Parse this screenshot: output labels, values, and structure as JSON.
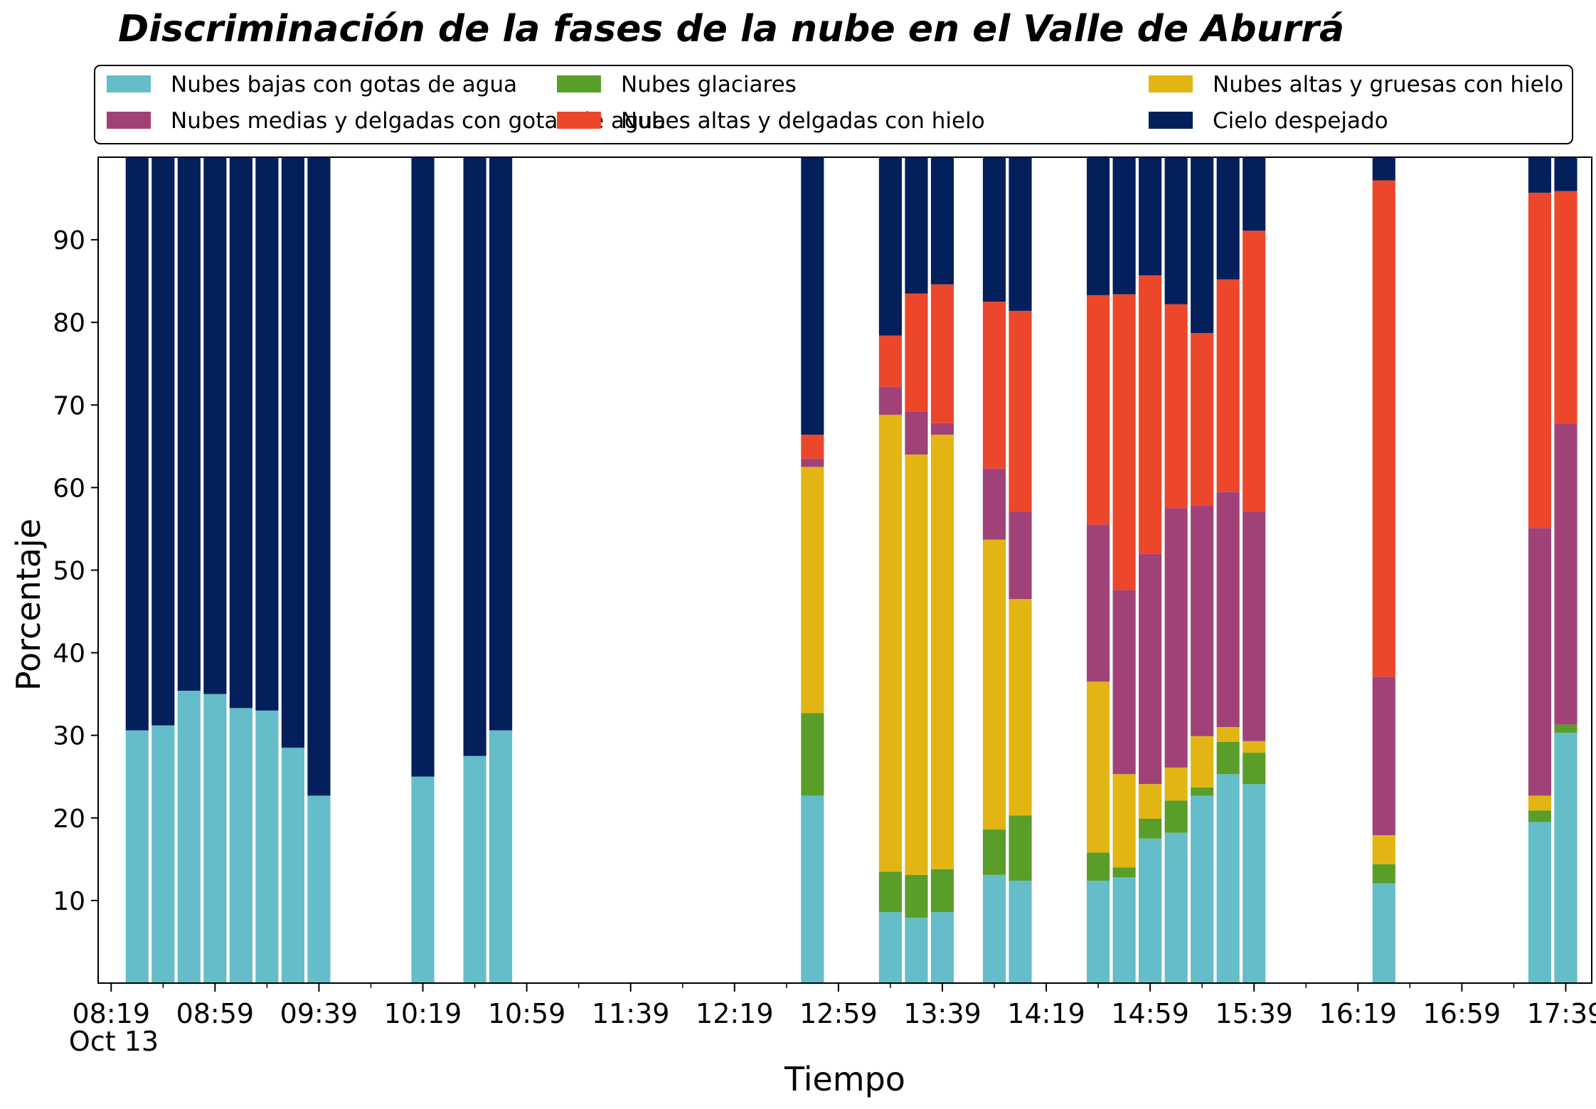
{
  "chart_data": {
    "type": "bar",
    "stacked": true,
    "title": "Discriminación de la fases de la nube en el Valle de Aburrá",
    "xlabel": "Tiempo",
    "ylabel": "Porcentaje",
    "ylim": [
      0,
      100
    ],
    "yticks": [
      10,
      20,
      30,
      40,
      50,
      60,
      70,
      80,
      90
    ],
    "x_tick_labels": [
      "08:19",
      "08:59",
      "09:39",
      "10:19",
      "10:59",
      "11:39",
      "12:19",
      "12:59",
      "13:39",
      "14:19",
      "14:59",
      "15:39",
      "16:19",
      "16:59",
      "17:39"
    ],
    "x_date_label": "Oct 13",
    "x_time_range": [
      "08:14",
      "17:49"
    ],
    "bar_width_minutes": 8.8,
    "grid": false,
    "legend_position": "top",
    "times": [
      "08:29",
      "08:39",
      "08:49",
      "08:59",
      "09:09",
      "09:19",
      "09:29",
      "09:39",
      "10:19",
      "10:39",
      "10:49",
      "12:49",
      "13:19",
      "13:29",
      "13:39",
      "13:59",
      "14:09",
      "14:39",
      "14:49",
      "14:59",
      "15:09",
      "15:19",
      "15:29",
      "15:39",
      "16:29",
      "17:29",
      "17:39"
    ],
    "series": [
      {
        "name": "Nubes bajas con gotas de agua",
        "color": "#64bdc8",
        "values": [
          30.6,
          31.2,
          35.4,
          35.0,
          33.3,
          33.0,
          28.5,
          22.7,
          25.0,
          27.5,
          30.6,
          22.7,
          8.6,
          7.9,
          8.6,
          13.1,
          12.4,
          12.4,
          12.8,
          17.5,
          18.2,
          22.7,
          25.3,
          24.1,
          12.1,
          19.5,
          30.3
        ]
      },
      {
        "name": "Nubes glaciares",
        "color": "#5a9e2a",
        "values": [
          0,
          0,
          0,
          0,
          0,
          0,
          0,
          0,
          0,
          0,
          0,
          10.0,
          4.9,
          5.2,
          5.2,
          5.5,
          7.9,
          3.4,
          1.2,
          2.4,
          3.9,
          1.0,
          3.9,
          3.8,
          2.3,
          1.4,
          1.0
        ]
      },
      {
        "name": "Nubes altas y gruesas con hielo",
        "color": "#e2b514",
        "values": [
          0,
          0,
          0,
          0,
          0,
          0,
          0,
          0,
          0,
          0,
          0,
          29.8,
          55.3,
          50.9,
          52.6,
          35.1,
          26.2,
          20.7,
          11.3,
          4.2,
          4.0,
          6.2,
          1.8,
          1.4,
          3.5,
          1.8,
          0
        ]
      },
      {
        "name": "Nubes medias y delgadas con gotas de agua",
        "color": "#a04278",
        "values": [
          0,
          0,
          0,
          0,
          0,
          0,
          0,
          0,
          0,
          0,
          0,
          1.0,
          3.4,
          5.2,
          1.4,
          8.6,
          10.6,
          19.0,
          22.3,
          27.9,
          31.4,
          27.9,
          28.5,
          27.8,
          19.2,
          32.4,
          36.4
        ]
      },
      {
        "name": "Nubes altas y delgadas con hielo",
        "color": "#ec472b",
        "values": [
          0,
          0,
          0,
          0,
          0,
          0,
          0,
          0,
          0,
          0,
          0,
          2.9,
          6.2,
          14.3,
          16.8,
          20.2,
          24.3,
          27.8,
          35.8,
          33.7,
          24.7,
          20.9,
          25.7,
          34.0,
          60.1,
          40.6,
          28.2
        ]
      },
      {
        "name": "Cielo despejado",
        "color": "#03205c",
        "values": [
          69.4,
          68.8,
          64.6,
          65.0,
          66.7,
          67.0,
          71.5,
          77.3,
          75.0,
          72.5,
          69.4,
          33.6,
          21.6,
          16.5,
          15.4,
          17.5,
          18.6,
          16.8,
          16.6,
          14.3,
          17.8,
          21.3,
          14.8,
          8.9,
          2.8,
          4.4,
          4.1
        ]
      }
    ]
  }
}
